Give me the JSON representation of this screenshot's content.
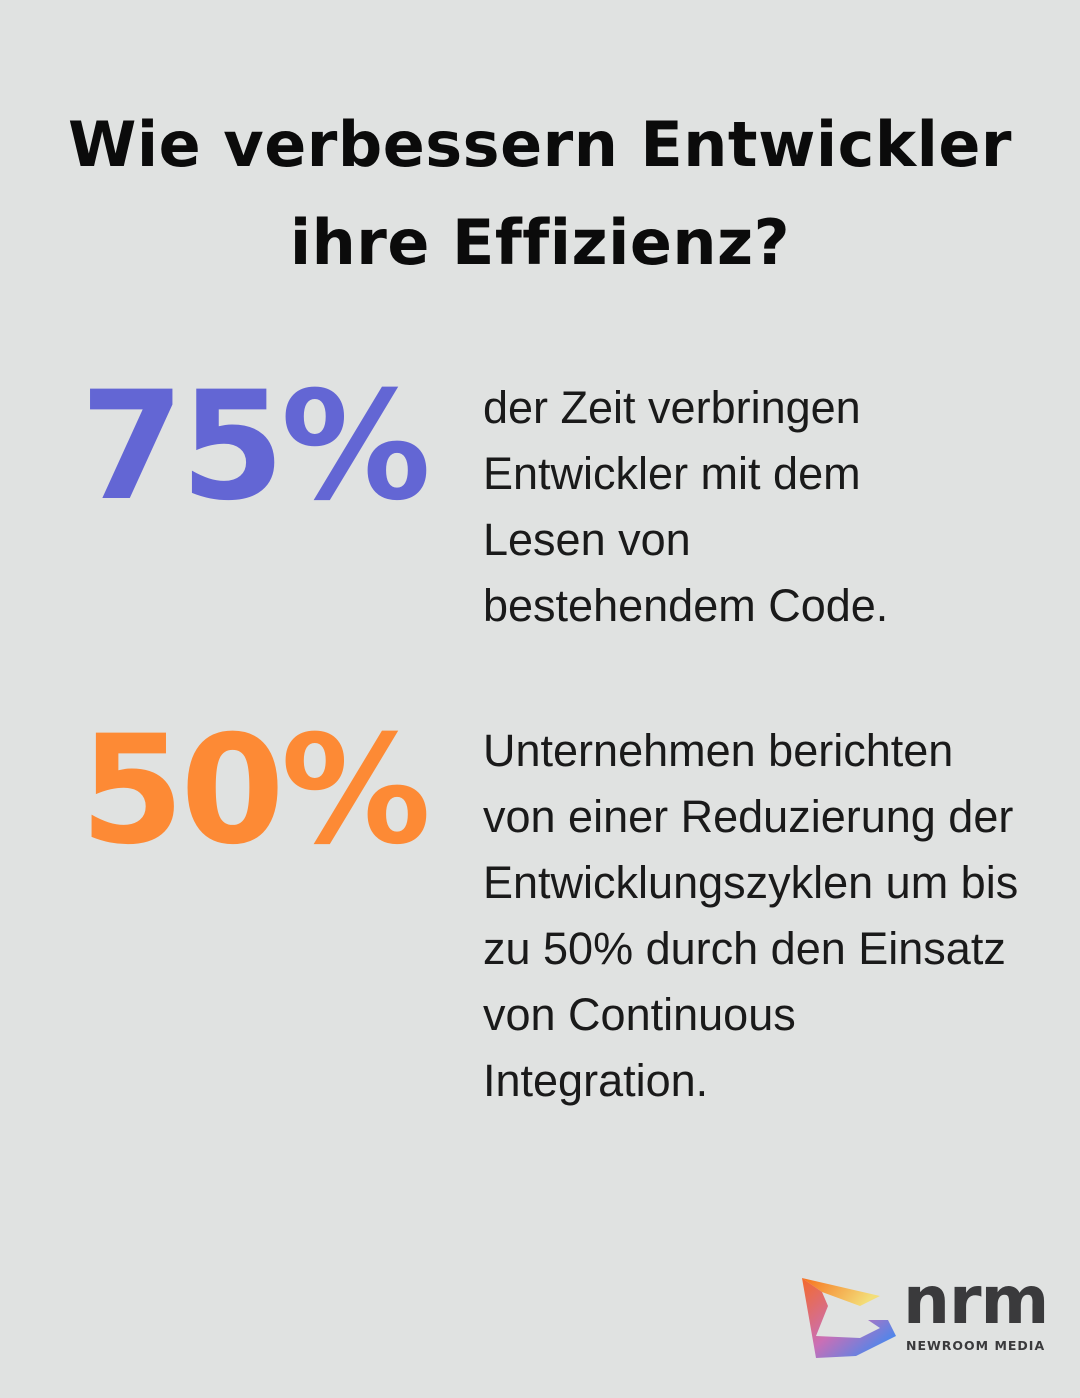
{
  "title": {
    "line1": "Wie verbessern Entwickler",
    "line2": "ihre Effizienz?"
  },
  "stats": [
    {
      "value": "75%",
      "color": "#6366d4",
      "text": "der Zeit verbringen Entwickler mit dem Lesen von bestehendem Code."
    },
    {
      "value": "50%",
      "color": "#fd8a35",
      "text": "Unternehmen berichten von einer Reduzierung der Entwicklungszyklen um bis zu 50% durch den Einsatz von Continuous Integration."
    }
  ],
  "logo": {
    "mark": "nrm",
    "name": "NEWROOM MEDIA",
    "icon": "newroom-media-logo-icon"
  }
}
